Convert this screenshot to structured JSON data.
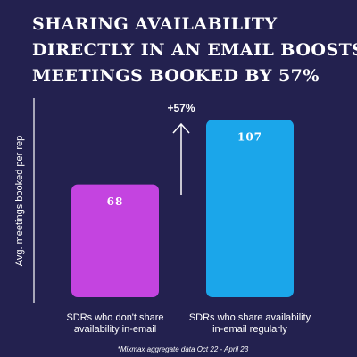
{
  "chart_data": {
    "type": "bar",
    "title": [
      "SHARING AVAILABILITY",
      "DIRECTLY IN AN EMAIL BOOSTS",
      "MEETINGS BOOKED BY 57%"
    ],
    "ylabel": "Avg. meetings booked per rep",
    "categories": [
      [
        "SDRs who don't share",
        "availability in-email"
      ],
      [
        "SDRs who share availability",
        "in-email regularly"
      ]
    ],
    "values": [
      68,
      107
    ],
    "colors": [
      "#c444e0",
      "#1ba6ea"
    ],
    "ylim": [
      0,
      120
    ],
    "annotation": "+57%",
    "footnote": "*Mixmax aggregate data Oct 22 - April 23"
  }
}
